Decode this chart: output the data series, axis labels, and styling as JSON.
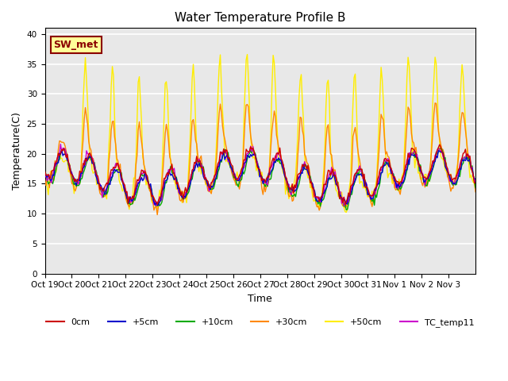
{
  "title": "Water Temperature Profile B",
  "xlabel": "Time",
  "ylabel": "Temperature(C)",
  "ylim": [
    0,
    41
  ],
  "yticks": [
    0,
    5,
    10,
    15,
    20,
    25,
    30,
    35,
    40
  ],
  "x_tick_labels": [
    "Oct 19",
    "Oct 20",
    "Oct 21",
    "Oct 22",
    "Oct 23",
    "Oct 24",
    "Oct 25",
    "Oct 26",
    "Oct 27",
    "Oct 28",
    "Oct 29",
    "Oct 30",
    "Oct 31",
    "Nov 1",
    "Nov 2",
    "Nov 3"
  ],
  "annotation_text": "SW_met",
  "annotation_color": "#8B0000",
  "annotation_bg": "#FFFF99",
  "background_color": "#E8E8E8",
  "series_colors": {
    "0cm": "#CC0000",
    "+5cm": "#0000CC",
    "+10cm": "#00AA00",
    "+30cm": "#FF8800",
    "+50cm": "#FFEE00",
    "TC_temp11": "#CC00CC"
  },
  "legend_labels": [
    "0cm",
    "+5cm",
    "+10cm",
    "+30cm",
    "+50cm",
    "TC_temp11"
  ]
}
